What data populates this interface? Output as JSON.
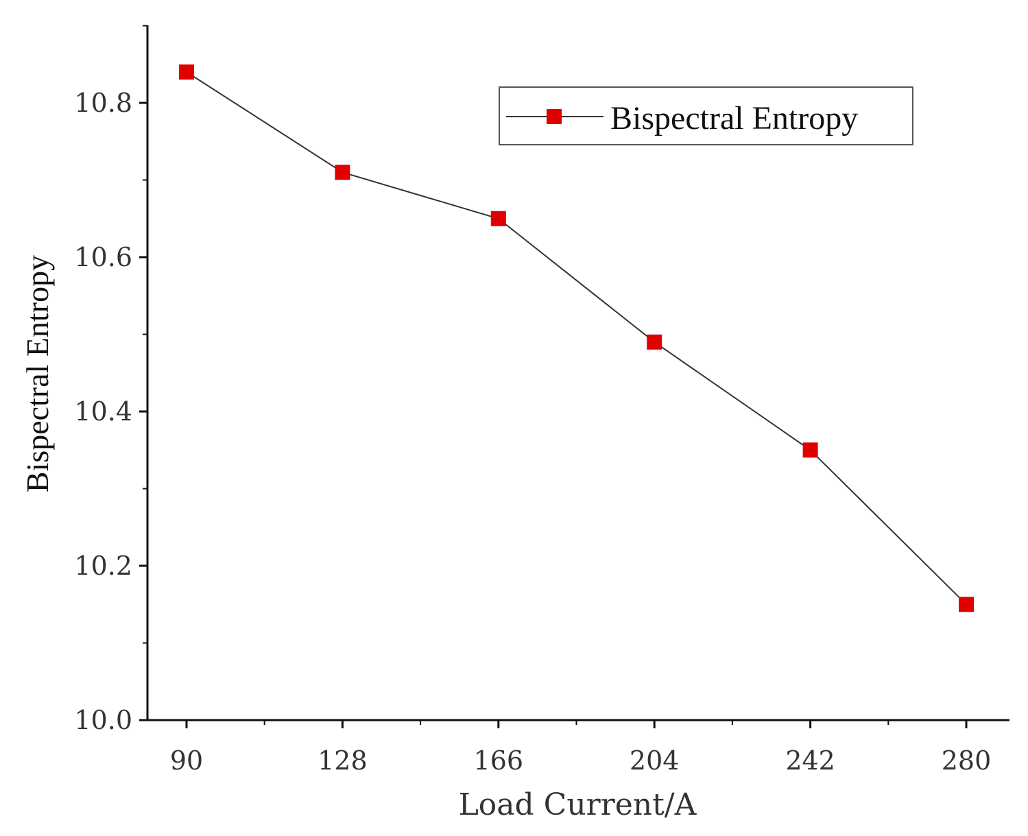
{
  "chart_data": {
    "type": "line",
    "xlabel": "Load Current/A",
    "ylabel": "Bispectral Entropy",
    "x_ticks": [
      "90",
      "128",
      "166",
      "204",
      "242",
      "280"
    ],
    "y_ticks": [
      "10.0",
      "10.2",
      "10.4",
      "10.6",
      "10.8"
    ],
    "ylim": [
      10.0,
      10.9
    ],
    "grid": false,
    "legend_position": "top-right",
    "series": [
      {
        "name": "Bispectral Entropy",
        "color": "#e00000",
        "line_color": "#333333",
        "marker": "square",
        "x": [
          90,
          128,
          166,
          204,
          242,
          280
        ],
        "values": [
          10.84,
          10.71,
          10.65,
          10.49,
          10.35,
          10.15
        ]
      }
    ]
  }
}
